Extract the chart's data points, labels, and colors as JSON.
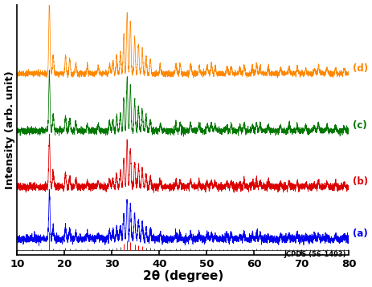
{
  "xlabel": "2θ (degree)",
  "ylabel": "Intensity (arb. unit)",
  "xlim": [
    10,
    80
  ],
  "x_ticks": [
    10,
    20,
    30,
    40,
    50,
    60,
    70,
    80
  ],
  "colors": {
    "a": "#0000ee",
    "b": "#dd0000",
    "c": "#007700",
    "d": "#ff8800"
  },
  "labels": {
    "a": "(a)",
    "b": "(b)",
    "c": "(c)",
    "d": "(d)"
  },
  "jcpds_label": "JCPDS (56-1493)",
  "background_color": "#ffffff",
  "jcpds_peaks": [
    [
      13.2,
      0.04,
      "black"
    ],
    [
      15.1,
      0.06,
      "black"
    ],
    [
      16.8,
      1.0,
      "red"
    ],
    [
      17.6,
      0.08,
      "black"
    ],
    [
      18.9,
      0.05,
      "black"
    ],
    [
      20.2,
      0.12,
      "black"
    ],
    [
      21.1,
      0.1,
      "black"
    ],
    [
      22.4,
      0.07,
      "black"
    ],
    [
      23.5,
      0.06,
      "black"
    ],
    [
      24.8,
      0.07,
      "black"
    ],
    [
      25.9,
      0.05,
      "black"
    ],
    [
      27.1,
      0.06,
      "black"
    ],
    [
      28.3,
      0.05,
      "black"
    ],
    [
      29.5,
      0.08,
      "black"
    ],
    [
      30.2,
      0.1,
      "black"
    ],
    [
      31.0,
      0.14,
      "black"
    ],
    [
      31.8,
      0.18,
      "black"
    ],
    [
      32.5,
      0.35,
      "red"
    ],
    [
      33.2,
      0.55,
      "red"
    ],
    [
      33.9,
      0.45,
      "red"
    ],
    [
      34.8,
      0.3,
      "red"
    ],
    [
      35.6,
      0.25,
      "red"
    ],
    [
      36.4,
      0.2,
      "red"
    ],
    [
      37.2,
      0.15,
      "black"
    ],
    [
      38.1,
      0.12,
      "black"
    ],
    [
      39.0,
      0.1,
      "black"
    ],
    [
      40.2,
      0.08,
      "black"
    ],
    [
      41.1,
      0.07,
      "black"
    ],
    [
      42.3,
      0.06,
      "black"
    ],
    [
      43.5,
      0.08,
      "black"
    ],
    [
      44.4,
      0.07,
      "black"
    ],
    [
      45.5,
      0.06,
      "black"
    ],
    [
      46.6,
      0.08,
      "black"
    ],
    [
      47.5,
      0.05,
      "black"
    ],
    [
      48.4,
      0.06,
      "black"
    ],
    [
      49.3,
      0.05,
      "black"
    ],
    [
      50.1,
      0.06,
      "black"
    ],
    [
      51.0,
      0.07,
      "black"
    ],
    [
      51.8,
      0.05,
      "black"
    ],
    [
      52.6,
      0.04,
      "black"
    ],
    [
      53.5,
      0.05,
      "black"
    ],
    [
      54.3,
      0.04,
      "black"
    ],
    [
      55.2,
      0.05,
      "black"
    ],
    [
      56.1,
      0.04,
      "black"
    ],
    [
      57.0,
      0.04,
      "black"
    ],
    [
      57.9,
      0.06,
      "black"
    ],
    [
      58.8,
      0.05,
      "black"
    ],
    [
      59.7,
      0.04,
      "black"
    ],
    [
      60.5,
      0.07,
      "black"
    ],
    [
      61.3,
      0.05,
      "black"
    ],
    [
      62.1,
      0.04,
      "black"
    ],
    [
      63.0,
      0.05,
      "black"
    ],
    [
      63.9,
      0.04,
      "black"
    ],
    [
      64.8,
      0.04,
      "black"
    ],
    [
      65.6,
      0.05,
      "black"
    ],
    [
      66.5,
      0.04,
      "black"
    ],
    [
      67.4,
      0.05,
      "black"
    ],
    [
      68.2,
      0.04,
      "black"
    ],
    [
      69.1,
      0.05,
      "black"
    ],
    [
      70.0,
      0.04,
      "black"
    ],
    [
      70.9,
      0.03,
      "black"
    ],
    [
      71.8,
      0.04,
      "black"
    ],
    [
      72.7,
      0.03,
      "black"
    ],
    [
      73.6,
      0.05,
      "black"
    ],
    [
      74.5,
      0.03,
      "black"
    ],
    [
      75.4,
      0.04,
      "black"
    ],
    [
      76.3,
      0.03,
      "black"
    ],
    [
      77.2,
      0.04,
      "black"
    ],
    [
      78.1,
      0.03,
      "black"
    ],
    [
      79.0,
      0.03,
      "black"
    ],
    [
      79.8,
      0.03,
      "black"
    ]
  ],
  "xrd_peaks": [
    [
      16.8,
      0.75
    ],
    [
      17.6,
      0.2
    ],
    [
      20.2,
      0.18
    ],
    [
      21.1,
      0.15
    ],
    [
      22.4,
      0.1
    ],
    [
      24.8,
      0.08
    ],
    [
      27.1,
      0.08
    ],
    [
      29.5,
      0.1
    ],
    [
      30.2,
      0.12
    ],
    [
      31.0,
      0.18
    ],
    [
      31.8,
      0.22
    ],
    [
      32.5,
      0.4
    ],
    [
      33.2,
      0.65
    ],
    [
      33.9,
      0.55
    ],
    [
      34.8,
      0.38
    ],
    [
      35.6,
      0.3
    ],
    [
      36.4,
      0.25
    ],
    [
      37.2,
      0.18
    ],
    [
      38.1,
      0.14
    ],
    [
      40.2,
      0.08
    ],
    [
      43.5,
      0.1
    ],
    [
      44.4,
      0.09
    ],
    [
      46.6,
      0.1
    ],
    [
      48.4,
      0.08
    ],
    [
      50.1,
      0.08
    ],
    [
      51.0,
      0.09
    ],
    [
      51.8,
      0.07
    ],
    [
      54.3,
      0.06
    ],
    [
      55.2,
      0.07
    ],
    [
      57.0,
      0.06
    ],
    [
      57.9,
      0.08
    ],
    [
      59.7,
      0.06
    ],
    [
      60.5,
      0.1
    ],
    [
      61.3,
      0.08
    ],
    [
      63.0,
      0.07
    ],
    [
      65.6,
      0.07
    ],
    [
      67.4,
      0.07
    ],
    [
      69.1,
      0.07
    ],
    [
      70.9,
      0.05
    ],
    [
      72.7,
      0.05
    ],
    [
      73.6,
      0.08
    ],
    [
      75.4,
      0.06
    ],
    [
      77.2,
      0.06
    ],
    [
      79.0,
      0.05
    ]
  ],
  "noise_levels": [
    0.02,
    0.018,
    0.016,
    0.014
  ],
  "scale_factors": [
    0.62,
    0.68,
    0.8,
    0.95
  ],
  "pattern_offsets": [
    0.0,
    0.52,
    1.08,
    1.65
  ],
  "jcpds_stem_scale": 0.18,
  "ylim": [
    -0.15,
    2.35
  ]
}
